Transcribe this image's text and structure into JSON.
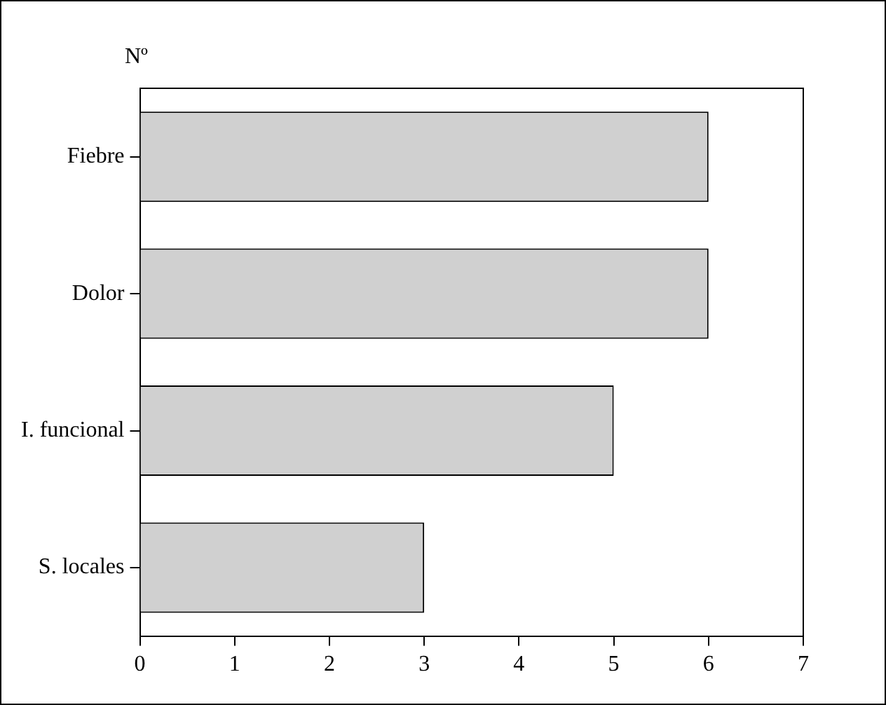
{
  "chart_data": {
    "type": "bar",
    "orientation": "horizontal",
    "ylabel": "Nº",
    "categories": [
      "Fiebre",
      "Dolor",
      "I. funcional",
      "S. locales"
    ],
    "values": [
      6,
      6,
      5,
      3
    ],
    "color": "#d0d0d0",
    "xlim": [
      0,
      7
    ],
    "xticks": [
      0,
      1,
      2,
      3,
      4,
      5,
      6,
      7
    ],
    "grid": false,
    "legend": false
  }
}
